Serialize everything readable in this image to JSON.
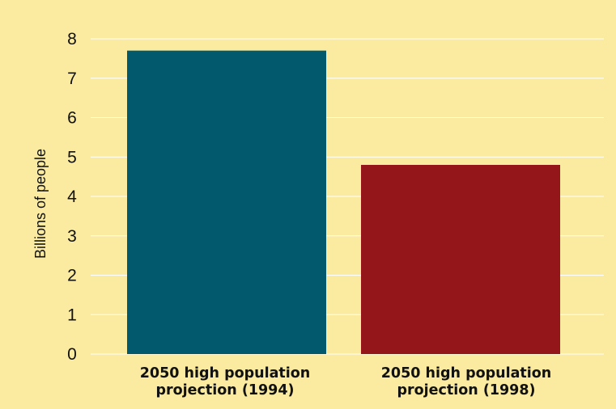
{
  "chart_data": {
    "type": "bar",
    "categories": [
      [
        "2050 high population",
        "projection (1994)"
      ],
      [
        "2050 high population",
        "projection (1998)"
      ]
    ],
    "values": [
      7.7,
      4.8
    ],
    "ylabel": "Billions of people",
    "ylim": [
      0,
      8
    ],
    "yticks": [
      0,
      1,
      2,
      3,
      4,
      5,
      6,
      7,
      8
    ],
    "grid": true,
    "legend": "none",
    "colors": {
      "background": "#faeba0",
      "grid": "#ffffff",
      "bars": [
        "#02596d",
        "#94161b"
      ],
      "text": "#111111"
    }
  }
}
